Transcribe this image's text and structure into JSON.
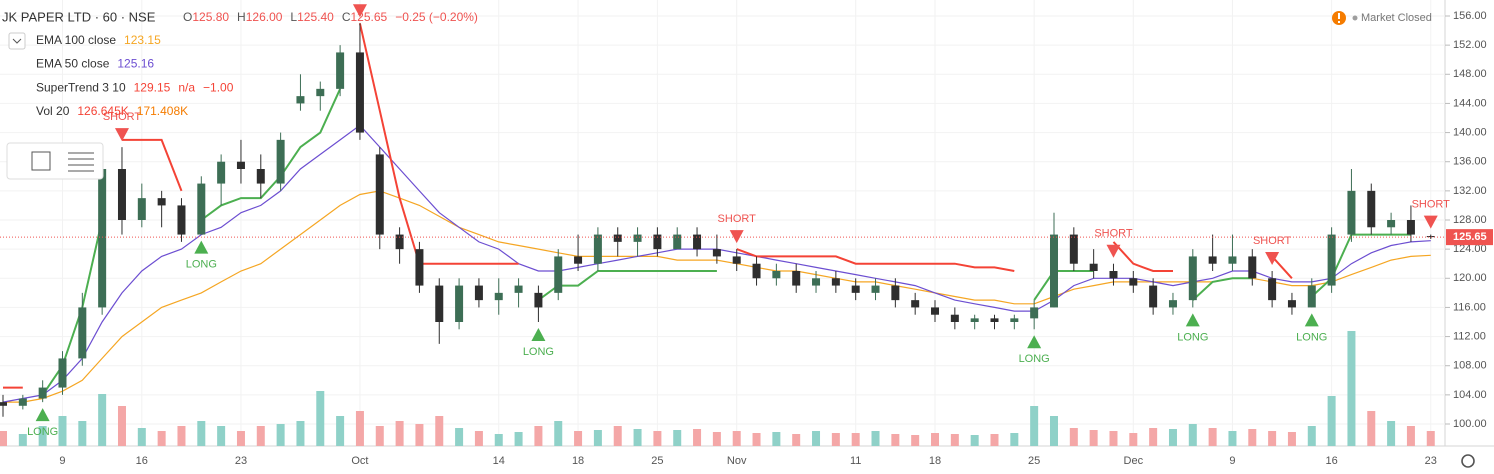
{
  "header": {
    "symbol": "JK PAPER LTD · 60 · NSE",
    "ohlc": [
      {
        "label": "O",
        "value": "125.80"
      },
      {
        "label": "H",
        "value": "126.00"
      },
      {
        "label": "L",
        "value": "125.40"
      },
      {
        "label": "C",
        "value": "125.65"
      }
    ],
    "change": "−0.25 (−0.20%)",
    "status": "Market Closed"
  },
  "legend": [
    {
      "name": "EMA 100 close",
      "values": [
        "123.15"
      ],
      "colors": [
        "#f5a623"
      ]
    },
    {
      "name": "EMA 50 close",
      "values": [
        "125.16"
      ],
      "colors": [
        "#6c4ed1"
      ]
    },
    {
      "name": "SuperTrend 3 10",
      "values": [
        "129.15",
        "n/a",
        "−1.00"
      ],
      "colors": [
        "#f44336",
        "#f44336",
        "#f44336"
      ]
    },
    {
      "name": "Vol 20",
      "values": [
        "126.645K",
        "171.408K"
      ],
      "colors": [
        "#f44336",
        "#f57c00"
      ]
    }
  ],
  "chart_data": {
    "type": "candlestick",
    "categories": [
      null,
      null,
      null,
      "9",
      null,
      null,
      null,
      "16",
      null,
      null,
      null,
      null,
      "23",
      null,
      null,
      null,
      null,
      null,
      "Oct",
      null,
      null,
      null,
      null,
      null,
      null,
      "14",
      null,
      null,
      null,
      "18",
      null,
      null,
      null,
      "25",
      null,
      null,
      null,
      "Nov",
      null,
      null,
      null,
      null,
      null,
      "11",
      null,
      null,
      null,
      "18",
      null,
      null,
      null,
      null,
      "25",
      null,
      null,
      null,
      null,
      "Dec",
      null,
      null,
      null,
      null,
      "9",
      null,
      null,
      null,
      null,
      "16",
      null,
      null,
      null,
      null,
      "23"
    ],
    "open": [
      103,
      102.5,
      103.5,
      105,
      109,
      116,
      135,
      128,
      131,
      130,
      126,
      133,
      136,
      135,
      133,
      144,
      145,
      146,
      151,
      137,
      126,
      124,
      119,
      114,
      119,
      117,
      118,
      118,
      118,
      123,
      122,
      126,
      125,
      126,
      124,
      126,
      124,
      123,
      122,
      120,
      121,
      119,
      120,
      119,
      118,
      119,
      117,
      116,
      115,
      114,
      114.5,
      114,
      114.5,
      116,
      126,
      122,
      121,
      120,
      119,
      116,
      117,
      123,
      122,
      123,
      120,
      117,
      116,
      119,
      126,
      132,
      127,
      128,
      125.8
    ],
    "high": [
      104,
      104,
      106,
      110,
      118,
      138,
      138,
      133,
      132,
      131,
      134,
      137,
      139,
      137,
      140,
      148,
      147,
      152,
      155,
      138,
      127,
      125,
      120,
      120,
      120,
      120,
      120,
      119,
      124,
      126,
      127,
      127,
      127,
      127,
      127,
      127,
      126,
      124,
      123,
      122,
      122,
      121,
      121,
      120,
      120,
      120,
      118,
      117,
      116,
      115,
      115,
      115,
      117,
      129,
      127,
      124,
      122,
      121,
      120,
      118,
      124,
      126,
      126,
      124,
      121,
      118,
      120,
      127,
      135,
      133,
      129,
      130,
      126
    ],
    "low": [
      101,
      102,
      103,
      104,
      108,
      115,
      126,
      127,
      127,
      125,
      126,
      130,
      133,
      131,
      132,
      143,
      143,
      145,
      139,
      124,
      122,
      118,
      111,
      113,
      116,
      115,
      116,
      114,
      117,
      121,
      121,
      123,
      123,
      123,
      124,
      123,
      122,
      121,
      119,
      119,
      118,
      118,
      118,
      117,
      117,
      116,
      115,
      114,
      113,
      113,
      113,
      113,
      113,
      116,
      121,
      120,
      119,
      118,
      115,
      115,
      116,
      121,
      121,
      119,
      116,
      115,
      116,
      118,
      125,
      126,
      126,
      125,
      125.4
    ],
    "close": [
      102.5,
      103.5,
      105,
      109,
      116,
      135,
      128,
      131,
      130,
      126,
      133,
      136,
      135,
      133,
      139,
      145,
      146,
      151,
      140,
      126,
      124,
      119,
      114,
      119,
      117,
      118,
      119,
      116,
      123,
      122,
      126,
      125,
      126,
      124,
      126,
      124,
      123,
      122,
      120,
      121,
      119,
      120,
      119,
      118,
      119,
      117,
      116,
      115,
      114,
      114.5,
      114,
      114.5,
      116,
      126,
      122,
      121,
      120,
      119,
      116,
      117,
      123,
      122,
      123,
      120,
      117,
      116,
      119,
      126,
      132,
      127,
      128,
      126,
      125.65
    ],
    "up_color": "#3d6e55",
    "down_color": "#2e2e2e",
    "series": [
      {
        "name": "EMA 100 close",
        "color": "#f5a623",
        "values": [
          103,
          103,
          103.5,
          104.5,
          106,
          109,
          112,
          114,
          116,
          117,
          118,
          119.5,
          121,
          122,
          124,
          126,
          128,
          130,
          131.5,
          132,
          131,
          130,
          128.5,
          127,
          126,
          125,
          124.5,
          124,
          123.5,
          123,
          123,
          123,
          123,
          123,
          122.5,
          122.5,
          122.5,
          122,
          121.5,
          121,
          121,
          120.5,
          120,
          119.5,
          119.5,
          119,
          118.5,
          118,
          117.5,
          117,
          117,
          116.5,
          116.5,
          117.5,
          118.5,
          119,
          119.5,
          119.5,
          119.5,
          119.5,
          119.5,
          119.5,
          120,
          120,
          119.5,
          119,
          119,
          119.5,
          120.5,
          121.5,
          122.5,
          123,
          123.15
        ]
      },
      {
        "name": "EMA 50 close",
        "color": "#6c4ed1",
        "values": [
          103,
          103.5,
          104,
          106,
          109,
          114,
          118,
          121,
          123,
          124,
          126,
          127,
          129,
          130,
          132,
          135,
          137,
          139,
          141,
          138,
          135,
          132,
          129,
          127,
          125,
          124,
          122,
          121,
          121,
          121.5,
          122,
          122.5,
          123,
          123.5,
          124,
          124,
          124,
          123.5,
          123,
          122.5,
          122,
          121.5,
          121,
          120.5,
          120,
          119.5,
          119,
          118,
          117,
          116.5,
          116,
          115.5,
          115.5,
          117,
          119,
          120,
          120,
          120,
          119.5,
          119,
          119.5,
          120,
          121,
          121,
          120,
          119.5,
          119.5,
          120,
          122,
          123.5,
          124.5,
          125,
          125.16
        ]
      },
      {
        "name": "SuperTrend 3 10",
        "color": "#4caf50",
        "values": [
          null,
          null,
          104,
          108,
          116,
          128,
          null,
          null,
          null,
          null,
          128,
          130,
          131,
          131,
          134,
          138,
          140,
          146,
          null,
          null,
          null,
          null,
          null,
          null,
          null,
          null,
          null,
          117,
          119,
          119,
          121,
          121,
          121,
          121,
          121,
          121,
          121,
          null,
          null,
          null,
          null,
          null,
          null,
          null,
          null,
          null,
          null,
          null,
          null,
          null,
          null,
          null,
          117,
          121,
          121,
          121,
          null,
          null,
          null,
          null,
          117,
          119.5,
          120,
          120,
          null,
          null,
          117.5,
          120,
          126,
          126,
          126,
          126,
          null
        ]
      },
      {
        "name": "SuperTrend 3 10",
        "color": "#f44336",
        "values": [
          105,
          105,
          null,
          null,
          null,
          null,
          139,
          139,
          139,
          132,
          null,
          null,
          null,
          null,
          null,
          null,
          null,
          null,
          155,
          143,
          131,
          122,
          122,
          122,
          122,
          122,
          122,
          null,
          null,
          null,
          null,
          null,
          null,
          null,
          null,
          null,
          null,
          124,
          123,
          123,
          123,
          123,
          123,
          122,
          122,
          122,
          122,
          122,
          122,
          121.5,
          121.5,
          121,
          null,
          null,
          null,
          null,
          125,
          122,
          121,
          121,
          null,
          null,
          null,
          null,
          123,
          120,
          null,
          null,
          null,
          null,
          null,
          null,
          128
        ]
      }
    ],
    "signals": [
      {
        "text": "LONG",
        "at": 2
      },
      {
        "text": "SHORT",
        "at": 6
      },
      {
        "text": "LONG",
        "at": 10
      },
      {
        "text": "SHORT",
        "at": 18
      },
      {
        "text": "LONG",
        "at": 27
      },
      {
        "text": "SHORT",
        "at": 37
      },
      {
        "text": "LONG",
        "at": 52
      },
      {
        "text": "SHORT",
        "at": 56
      },
      {
        "text": "LONG",
        "at": 60
      },
      {
        "text": "SHORT",
        "at": 64
      },
      {
        "text": "LONG",
        "at": 66
      },
      {
        "text": "SHORT",
        "at": 72
      }
    ],
    "long_color": "#4caf50",
    "short_color": "#ef5350",
    "volume": {
      "values": [
        150,
        120,
        200,
        300,
        250,
        520,
        400,
        180,
        150,
        200,
        250,
        200,
        150,
        200,
        220,
        250,
        550,
        300,
        350,
        200,
        250,
        220,
        300,
        180,
        150,
        120,
        140,
        200,
        250,
        150,
        160,
        200,
        170,
        150,
        160,
        170,
        140,
        150,
        130,
        140,
        120,
        150,
        130,
        130,
        150,
        120,
        110,
        130,
        120,
        110,
        120,
        130,
        400,
        300,
        180,
        160,
        150,
        130,
        180,
        170,
        220,
        180,
        150,
        170,
        150,
        140,
        200,
        500,
        1150,
        350,
        250,
        200,
        150
      ],
      "ylim": [
        0,
        1200
      ],
      "up_color": "#8fd1c8",
      "down_color": "#f4a7a7"
    },
    "last_price": {
      "value": 125.65,
      "label": "125.65"
    },
    "ylim": [
      100,
      156
    ],
    "yticks": [
      {
        "value": 100,
        "label": "100.00"
      },
      {
        "value": 104,
        "label": "104.00"
      },
      {
        "value": 108,
        "label": "108.00"
      },
      {
        "value": 112,
        "label": "112.00"
      },
      {
        "value": 116,
        "label": "116.00"
      },
      {
        "value": 120,
        "label": "120.00"
      },
      {
        "value": 124,
        "label": "124.00"
      },
      {
        "value": 128,
        "label": "128.00"
      },
      {
        "value": 132,
        "label": "132.00"
      },
      {
        "value": 136,
        "label": "136.00"
      },
      {
        "value": 140,
        "label": "140.00"
      },
      {
        "value": 144,
        "label": "144.00"
      },
      {
        "value": 148,
        "label": "148.00"
      },
      {
        "value": 152,
        "label": "152.00"
      },
      {
        "value": 156,
        "label": "156.00"
      }
    ],
    "grid": true
  }
}
